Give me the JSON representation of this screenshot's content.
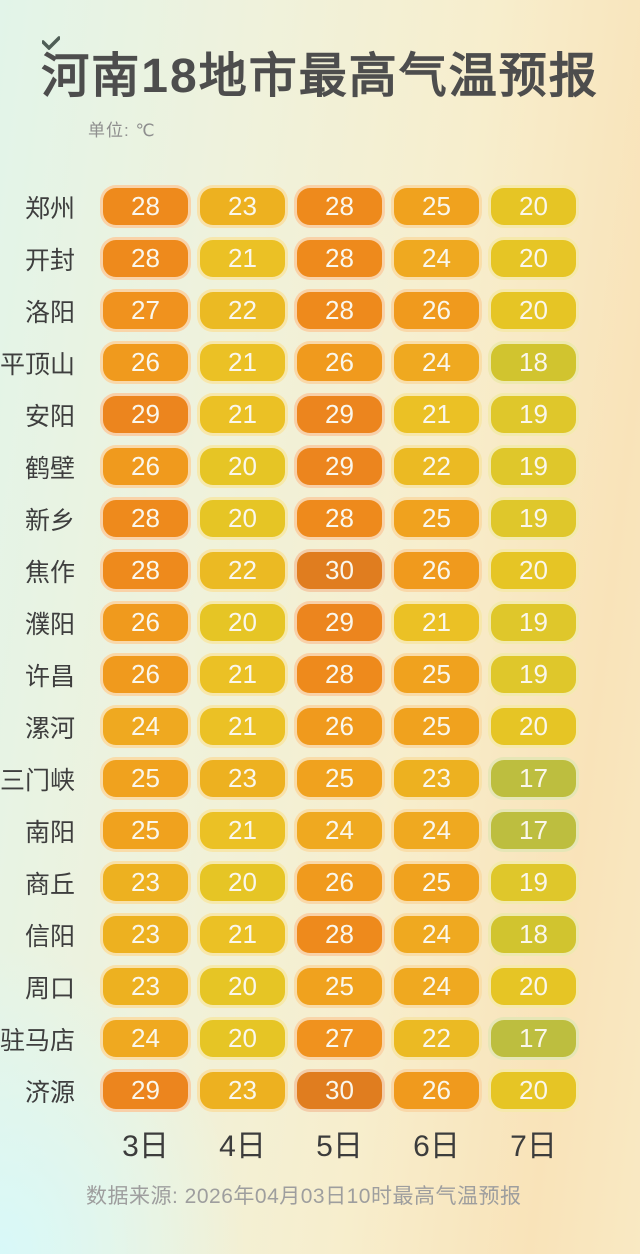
{
  "chart_data": {
    "type": "heatmap",
    "title": "河南18地市最高气温预报",
    "unit": "单位: ℃",
    "columns": [
      "3日",
      "4日",
      "5日",
      "6日",
      "7日"
    ],
    "rows": [
      {
        "city": "郑州",
        "values": [
          28,
          23,
          28,
          25,
          20
        ]
      },
      {
        "city": "开封",
        "values": [
          28,
          21,
          28,
          24,
          20
        ]
      },
      {
        "city": "洛阳",
        "values": [
          27,
          22,
          28,
          26,
          20
        ]
      },
      {
        "city": "平顶山",
        "values": [
          26,
          21,
          26,
          24,
          18
        ]
      },
      {
        "city": "安阳",
        "values": [
          29,
          21,
          29,
          21,
          19
        ]
      },
      {
        "city": "鹤壁",
        "values": [
          26,
          20,
          29,
          22,
          19
        ]
      },
      {
        "city": "新乡",
        "values": [
          28,
          20,
          28,
          25,
          19
        ]
      },
      {
        "city": "焦作",
        "values": [
          28,
          22,
          30,
          26,
          20
        ]
      },
      {
        "city": "濮阳",
        "values": [
          26,
          20,
          29,
          21,
          19
        ]
      },
      {
        "city": "许昌",
        "values": [
          26,
          21,
          28,
          25,
          19
        ]
      },
      {
        "city": "漯河",
        "values": [
          24,
          21,
          26,
          25,
          20
        ]
      },
      {
        "city": "三门峡",
        "values": [
          25,
          23,
          25,
          23,
          17
        ]
      },
      {
        "city": "南阳",
        "values": [
          25,
          21,
          24,
          24,
          17
        ]
      },
      {
        "city": "商丘",
        "values": [
          23,
          20,
          26,
          25,
          19
        ]
      },
      {
        "city": "信阳",
        "values": [
          23,
          21,
          28,
          24,
          18
        ]
      },
      {
        "city": "周口",
        "values": [
          23,
          20,
          25,
          24,
          20
        ]
      },
      {
        "city": "驻马店",
        "values": [
          24,
          20,
          27,
          22,
          17
        ]
      },
      {
        "city": "济源",
        "values": [
          29,
          23,
          30,
          26,
          20
        ]
      }
    ],
    "value_range": [
      17,
      30
    ],
    "color_scale": {
      "17": "#BDBE3F",
      "18": "#D1C42F",
      "19": "#DFC72B",
      "20": "#E6C525",
      "21": "#EBC125",
      "22": "#EBBA23",
      "23": "#EDB120",
      "24": "#EFA920",
      "25": "#F0A21E",
      "26": "#F09A1D",
      "27": "#F0921E",
      "28": "#EE8A1C",
      "29": "#EC851E",
      "30": "#E07D1F"
    },
    "legend_position": "none",
    "grid": false,
    "source": "数据来源: 2026年04月03日10时最高气温预报"
  }
}
